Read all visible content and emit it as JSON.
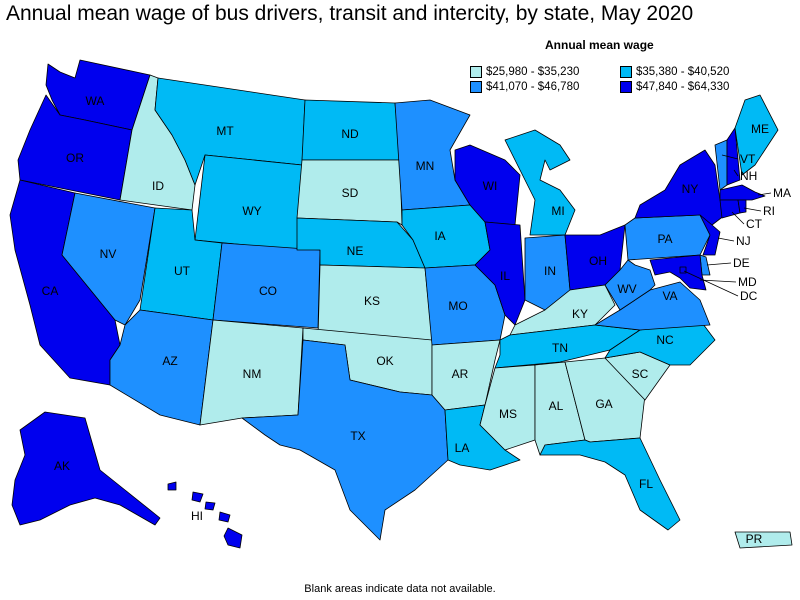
{
  "title": "Annual mean wage of bus drivers, transit and intercity, by state, May 2020",
  "legend": {
    "title": "Annual mean wage",
    "bins": [
      {
        "label": "$25,980 - $35,230",
        "color": "#b0ecec"
      },
      {
        "label": "$35,380 - $40,520",
        "color": "#00baf5"
      },
      {
        "label": "$41,070 - $46,780",
        "color": "#1e90ff"
      },
      {
        "label": "$47,840 - $64,330",
        "color": "#0000ee"
      }
    ]
  },
  "footnote": "Blank areas indicate data not available.",
  "states": {
    "WA": {
      "label": "WA",
      "bin": 3
    },
    "OR": {
      "label": "OR",
      "bin": 3
    },
    "CA": {
      "label": "CA",
      "bin": 3
    },
    "ID": {
      "label": "ID",
      "bin": 0
    },
    "NV": {
      "label": "NV",
      "bin": 2
    },
    "MT": {
      "label": "MT",
      "bin": 1
    },
    "WY": {
      "label": "WY",
      "bin": 1
    },
    "UT": {
      "label": "UT",
      "bin": 1
    },
    "AZ": {
      "label": "AZ",
      "bin": 2
    },
    "CO": {
      "label": "CO",
      "bin": 2
    },
    "NM": {
      "label": "NM",
      "bin": 0
    },
    "ND": {
      "label": "ND",
      "bin": 1
    },
    "SD": {
      "label": "SD",
      "bin": 0
    },
    "NE": {
      "label": "NE",
      "bin": 1
    },
    "KS": {
      "label": "KS",
      "bin": 0
    },
    "OK": {
      "label": "OK",
      "bin": 0
    },
    "TX": {
      "label": "TX",
      "bin": 2
    },
    "MN": {
      "label": "MN",
      "bin": 2
    },
    "IA": {
      "label": "IA",
      "bin": 1
    },
    "MO": {
      "label": "MO",
      "bin": 2
    },
    "AR": {
      "label": "AR",
      "bin": 0
    },
    "LA": {
      "label": "LA",
      "bin": 1
    },
    "WI": {
      "label": "WI",
      "bin": 3
    },
    "IL": {
      "label": "IL",
      "bin": 3
    },
    "MI": {
      "label": "MI",
      "bin": 1
    },
    "IN": {
      "label": "IN",
      "bin": 2
    },
    "OH": {
      "label": "OH",
      "bin": 3
    },
    "KY": {
      "label": "KY",
      "bin": 0
    },
    "TN": {
      "label": "TN",
      "bin": 1
    },
    "MS": {
      "label": "MS",
      "bin": 0
    },
    "AL": {
      "label": "AL",
      "bin": 0
    },
    "GA": {
      "label": "GA",
      "bin": 0
    },
    "FL": {
      "label": "FL",
      "bin": 1
    },
    "SC": {
      "label": "SC",
      "bin": 0
    },
    "NC": {
      "label": "NC",
      "bin": 1
    },
    "VA": {
      "label": "VA",
      "bin": 2
    },
    "WV": {
      "label": "WV",
      "bin": 2
    },
    "PA": {
      "label": "PA",
      "bin": 2
    },
    "NY": {
      "label": "NY",
      "bin": 3
    },
    "ME": {
      "label": "ME",
      "bin": 1
    },
    "VT": {
      "label": "VT",
      "bin": 2
    },
    "NH": {
      "label": "NH",
      "bin": 3
    },
    "MA": {
      "label": "MA",
      "bin": 3
    },
    "RI": {
      "label": "RI",
      "bin": 3
    },
    "CT": {
      "label": "CT",
      "bin": 3
    },
    "NJ": {
      "label": "NJ",
      "bin": 3
    },
    "DE": {
      "label": "DE",
      "bin": 2
    },
    "MD": {
      "label": "MD",
      "bin": 3
    },
    "DC": {
      "label": "DC",
      "bin": 3
    },
    "AK": {
      "label": "AK",
      "bin": 3
    },
    "HI": {
      "label": "HI",
      "bin": 3
    },
    "PR": {
      "label": "PR",
      "bin": 0
    }
  }
}
